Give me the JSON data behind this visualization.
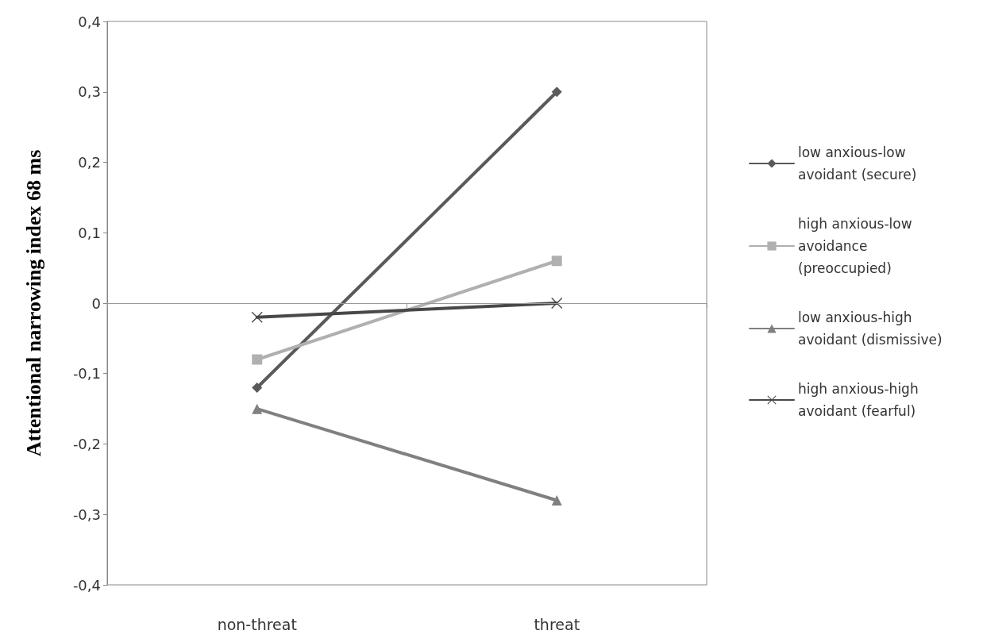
{
  "chart_data": {
    "type": "line",
    "ylabel": "Attentional narrowing index 68 ms",
    "categories": [
      "non-threat",
      "threat"
    ],
    "series": [
      {
        "name": "low anxious-low avoidant (secure)",
        "color": "#5a5a5a",
        "marker": "diamond",
        "values": [
          -0.12,
          0.3
        ]
      },
      {
        "name": "high anxious-low avoidance (preoccupied)",
        "color": "#b0b0b0",
        "marker": "square",
        "values": [
          -0.08,
          0.06
        ]
      },
      {
        "name": "low anxious-high avoidant (dismissive)",
        "color": "#808080",
        "marker": "triangle",
        "values": [
          -0.15,
          -0.28
        ]
      },
      {
        "name": "high anxious-high avoidant (fearful)",
        "color": "#484848",
        "marker": "cross",
        "values": [
          -0.02,
          0
        ]
      }
    ],
    "ylim": [
      -0.4,
      0.4
    ],
    "yticks": [
      {
        "value": -0.4,
        "label": "-0,4"
      },
      {
        "value": -0.3,
        "label": "-0,3"
      },
      {
        "value": -0.2,
        "label": "-0,2"
      },
      {
        "value": -0.1,
        "label": "-0,1"
      },
      {
        "value": 0,
        "label": "0"
      },
      {
        "value": 0.1,
        "label": "0,1"
      },
      {
        "value": 0.2,
        "label": "0,2"
      },
      {
        "value": 0.3,
        "label": "0,3"
      },
      {
        "value": 0.4,
        "label": "0,4"
      }
    ],
    "ref_lines": [
      {
        "axis": "y",
        "value": 0,
        "color": "#999999"
      }
    ],
    "grid": false,
    "legend": "right",
    "line_style": "solid"
  }
}
